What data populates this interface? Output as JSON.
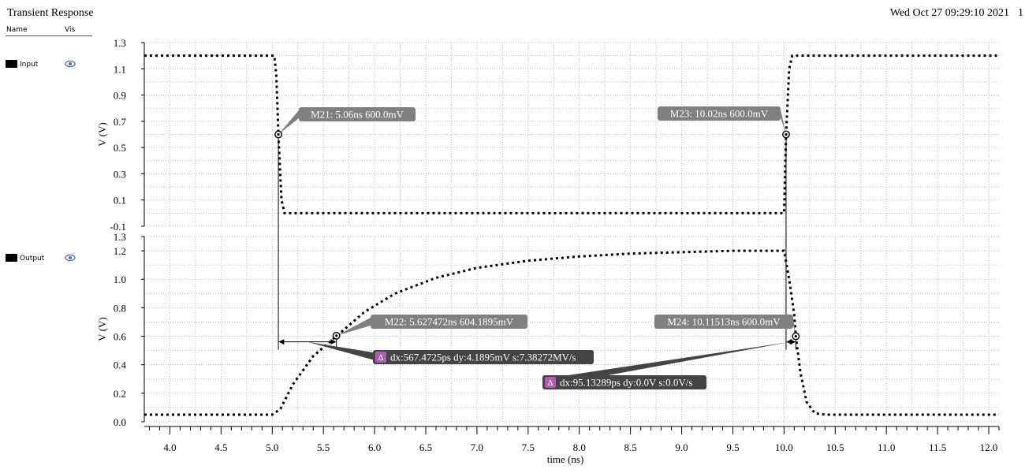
{
  "header": {
    "title": "Transient Response",
    "timestamp": "Wed Oct 27 09:29:10 2021",
    "page": "1"
  },
  "legend": {
    "name_header": "Name",
    "vis_header": "Vis",
    "items": [
      {
        "name": "Input",
        "vis_icon": "eye-icon"
      },
      {
        "name": "Output",
        "vis_icon": "eye-icon"
      }
    ]
  },
  "chart_data": [
    {
      "type": "line",
      "name": "Input",
      "ylabel": "V (V)",
      "ylim": [
        -0.1,
        1.3
      ],
      "y_ticks": [
        "1.3",
        "1.1",
        "0.9",
        "0.7",
        "0.5",
        "0.3",
        "0.1",
        "-0.1"
      ],
      "grid": true,
      "series": [
        {
          "name": "Input",
          "x": [
            3.75,
            5.02,
            5.04,
            5.06,
            5.09,
            5.12,
            10.0,
            10.02,
            10.05,
            10.08,
            12.1
          ],
          "y": [
            1.2,
            1.2,
            1.05,
            0.6,
            0.1,
            0.0,
            0.0,
            0.6,
            1.1,
            1.2,
            1.2
          ]
        }
      ],
      "markers": [
        {
          "label": "M21: 5.06ns 600.0mV",
          "x": 5.06,
          "y": 0.6
        },
        {
          "label": "M23: 10.02ns 600.0mV",
          "x": 10.02,
          "y": 0.6
        }
      ]
    },
    {
      "type": "line",
      "name": "Output",
      "xlabel": "time (ns)",
      "ylabel": "V (V)",
      "xlim": [
        3.75,
        12.1
      ],
      "ylim": [
        0.0,
        1.3
      ],
      "x_ticks": [
        "4.0",
        "4.5",
        "5.0",
        "5.5",
        "6.0",
        "6.5",
        "7.0",
        "7.5",
        "8.0",
        "8.5",
        "9.0",
        "9.5",
        "10.0",
        "10.5",
        "11.0",
        "11.5",
        "12.0"
      ],
      "y_ticks": [
        "1.3",
        "1.2",
        "1.0",
        "0.8",
        "0.6",
        "0.4",
        "0.2",
        "0.0"
      ],
      "grid": true,
      "series": [
        {
          "name": "Output",
          "x": [
            3.75,
            5.0,
            5.08,
            5.2,
            5.4,
            5.627,
            5.9,
            6.2,
            6.6,
            7.0,
            7.5,
            8.0,
            8.5,
            9.0,
            9.5,
            10.0,
            10.05,
            10.1,
            10.115,
            10.16,
            10.22,
            10.3,
            10.4,
            12.1
          ],
          "y": [
            0.05,
            0.05,
            0.09,
            0.26,
            0.46,
            0.6,
            0.77,
            0.9,
            1.01,
            1.08,
            1.13,
            1.16,
            1.18,
            1.19,
            1.2,
            1.2,
            1.0,
            0.75,
            0.6,
            0.35,
            0.14,
            0.06,
            0.05,
            0.05
          ]
        }
      ],
      "markers": [
        {
          "label": "M22: 5.627472ns 604.1895mV",
          "x": 5.627,
          "y": 0.604
        },
        {
          "label": "M24: 10.11513ns 600.0mV",
          "x": 10.115,
          "y": 0.6
        }
      ],
      "deltas": [
        {
          "label": "dx:567.4725ps dy:4.1895mV s:7.38272MV/s",
          "x1": 5.06,
          "x2": 5.627,
          "y": 0.55
        },
        {
          "label": "dx:95.13289ps dy:0.0V s:0.0V/s",
          "x1": 10.02,
          "x2": 10.115,
          "y": 0.55
        }
      ]
    }
  ],
  "colors": {
    "grid": "#b0b0b0",
    "trace": "#000000",
    "marker_label_bg": "#808080",
    "delta_label_bg": "#444444",
    "delta_icon": "#b05cb0",
    "eye": "#4a6fa5"
  }
}
